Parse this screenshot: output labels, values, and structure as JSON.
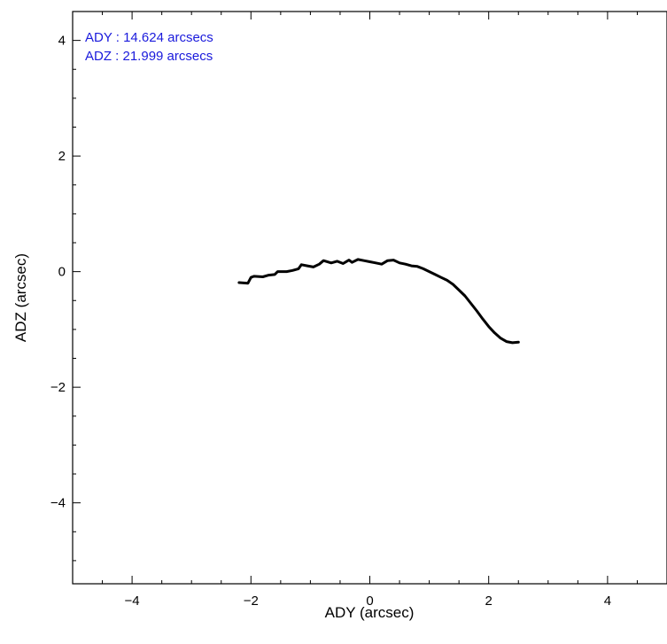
{
  "chart_data": {
    "type": "line",
    "xlabel": "ADY (arcsec)",
    "ylabel": "ADZ (arcsec)",
    "xlim": [
      -5.0,
      5.0
    ],
    "ylim": [
      -5.4,
      4.5
    ],
    "xticks": [
      -4,
      -2,
      0,
      2,
      4
    ],
    "xtick_labels": [
      "−4",
      "−2",
      "0",
      "2",
      "4"
    ],
    "yticks": [
      4,
      2,
      0,
      -2,
      -4
    ],
    "ytick_labels": [
      "4",
      "2",
      "0",
      "−2",
      "−4"
    ],
    "x_minor_step": 0.5,
    "y_minor_step": 0.5,
    "grid": false,
    "annotations": [
      "ADY : 14.624 arcsecs",
      "ADZ : 21.999 arcsecs"
    ],
    "annotation_color": "#1a1adc",
    "line_color": "#000000",
    "series": [
      {
        "x": [
          -2.2,
          -2.05,
          -2.0,
          -1.95,
          -1.8,
          -1.7,
          -1.6,
          -1.55,
          -1.4,
          -1.3,
          -1.2,
          -1.15,
          -1.05,
          -0.95,
          -0.85,
          -0.78,
          -0.65,
          -0.55,
          -0.45,
          -0.35,
          -0.3,
          -0.2,
          -0.1,
          0.0,
          0.1,
          0.2,
          0.3,
          0.4,
          0.5,
          0.6,
          0.7,
          0.8,
          0.9,
          1.0,
          1.1,
          1.2,
          1.3,
          1.4,
          1.5,
          1.6,
          1.7,
          1.8,
          1.9,
          2.0,
          2.1,
          2.2,
          2.3,
          2.4,
          2.5
        ],
        "y": [
          -0.19,
          -0.2,
          -0.1,
          -0.08,
          -0.09,
          -0.06,
          -0.05,
          0.0,
          0.0,
          0.02,
          0.05,
          0.12,
          0.1,
          0.08,
          0.13,
          0.19,
          0.15,
          0.18,
          0.14,
          0.2,
          0.16,
          0.21,
          0.19,
          0.17,
          0.15,
          0.13,
          0.19,
          0.2,
          0.15,
          0.13,
          0.1,
          0.09,
          0.05,
          0.0,
          -0.05,
          -0.1,
          -0.15,
          -0.22,
          -0.32,
          -0.42,
          -0.55,
          -0.68,
          -0.82,
          -0.95,
          -1.06,
          -1.15,
          -1.21,
          -1.23,
          -1.22
        ]
      }
    ]
  }
}
